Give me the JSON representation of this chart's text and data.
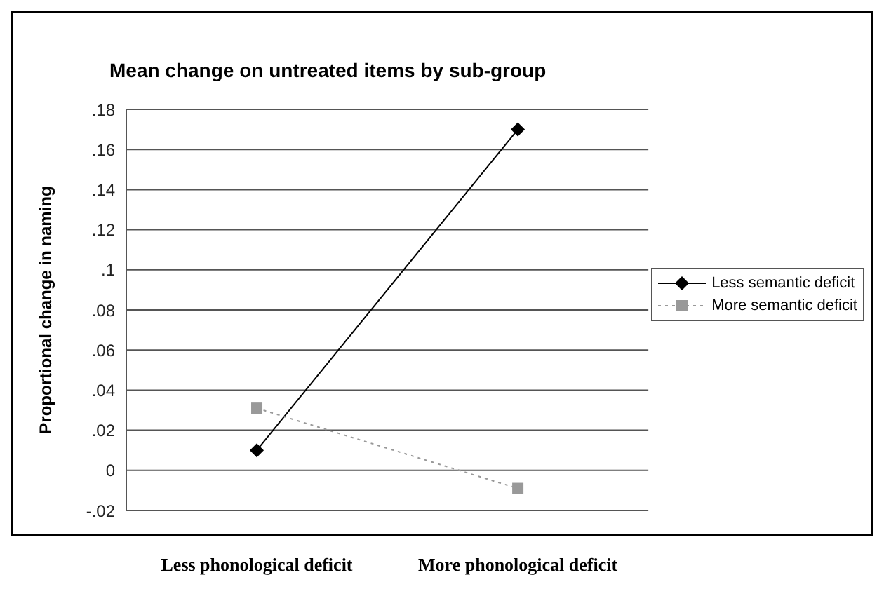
{
  "chart_data": {
    "type": "line",
    "title": "Mean change on untreated items by sub-group",
    "ylabel": "Proportional change in naming",
    "categories": [
      "Less phonological deficit",
      "More phonological deficit"
    ],
    "series": [
      {
        "name": "Less semantic deficit",
        "color": "#000000",
        "values": [
          0.01,
          0.17
        ],
        "marker": "diamond",
        "line_style": "solid"
      },
      {
        "name": "More semantic deficit",
        "color": "#999999",
        "values": [
          0.031,
          -0.009
        ],
        "marker": "square",
        "line_style": "dotted"
      }
    ],
    "ylim": [
      -0.02,
      0.18
    ],
    "yticks": [
      {
        "value": -0.02,
        "label": "-.02"
      },
      0,
      {
        "value": 0.02,
        "label": ".02"
      },
      {
        "value": 0.04,
        "label": ".04"
      },
      {
        "value": 0.06,
        "label": ".06"
      },
      {
        "value": 0.08,
        "label": ".08"
      },
      {
        "value": 0.1,
        "label": ".1"
      },
      {
        "value": 0.12,
        "label": ".12"
      },
      {
        "value": 0.14,
        "label": ".14"
      },
      {
        "value": 0.16,
        "label": ".16"
      },
      {
        "value": 0.18,
        "label": ".18"
      }
    ],
    "grid": "y",
    "legend": "right"
  }
}
